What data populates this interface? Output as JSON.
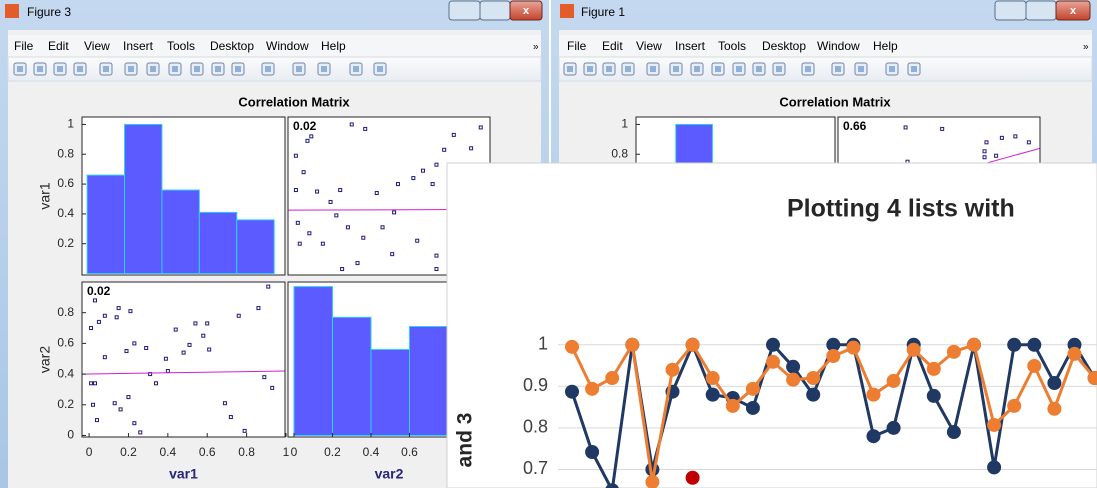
{
  "windows": [
    {
      "title": "Figure 3",
      "menu": [
        "File",
        "Edit",
        "View",
        "Insert",
        "Tools",
        "Desktop",
        "Window",
        "Help"
      ],
      "figure_title": "Correlation Matrix"
    },
    {
      "title": "Figure 1",
      "menu": [
        "File",
        "Edit",
        "View",
        "Insert",
        "Tools",
        "Desktop",
        "Window",
        "Help"
      ],
      "figure_title": "Correlation Matrix"
    }
  ],
  "chart_data": [
    {
      "type": "histogram",
      "bins": [
        -0.01,
        0.18,
        0.37,
        0.56,
        0.75,
        0.94
      ],
      "values": [
        0.66,
        1,
        0.56,
        0.41,
        0.36
      ],
      "color": "#5b5bff",
      "xlim": [
        -0.036,
        0.995
      ],
      "ylim": [
        -0.01,
        1.05
      ],
      "yticks": [
        0.2,
        0.4,
        0.6,
        0.8,
        1
      ],
      "ylabel": "var1"
    },
    {
      "type": "scatter",
      "annotation": "0.02",
      "color": "#1c1c7a",
      "fit_line": [
        0.425,
        0.43
      ],
      "x": [
        0.3,
        0.37,
        0.09,
        0.07,
        0.01,
        0.05,
        0.24,
        0.12,
        0.19,
        0.01,
        0.02,
        0.08,
        0.15,
        0.03,
        0.22,
        0.28,
        0.36,
        0.33,
        0.25,
        0.46,
        0.52,
        0.43,
        0.54,
        0.62,
        0.67,
        0.72,
        0.74,
        0.74,
        0.74,
        0.64,
        0.51,
        0.78,
        0.83,
        0.97,
        0.92
      ],
      "y": [
        1.0,
        0.97,
        0.92,
        0.89,
        0.79,
        0.68,
        0.56,
        0.55,
        0.48,
        0.56,
        0.34,
        0.27,
        0.2,
        0.2,
        0.39,
        0.31,
        0.24,
        0.07,
        0.03,
        0.31,
        0.41,
        0.54,
        0.6,
        0.64,
        0.69,
        0.6,
        0.73,
        0.03,
        0.12,
        0.22,
        0.13,
        0.83,
        0.93,
        0.98,
        0.84
      ],
      "xlim": [
        -0.031,
        1.018
      ],
      "ylim": [
        -0.01,
        1.05
      ]
    },
    {
      "type": "scatter",
      "annotation": "0.02",
      "color": "#1c1c7a",
      "fit_line": [
        0.4,
        0.42
      ],
      "x": [
        0.03,
        0.05,
        0.01,
        0.08,
        0.14,
        0.21,
        0.08,
        0.01,
        0.03,
        0.02,
        0.04,
        0.13,
        0.16,
        0.2,
        0.23,
        0.26,
        0.19,
        0.23,
        0.29,
        0.31,
        0.34,
        0.39,
        0.4,
        0.44,
        0.48,
        0.51,
        0.54,
        0.58,
        0.6,
        0.61,
        0.69,
        0.72,
        0.76,
        0.86,
        0.91,
        0.89,
        0.93,
        0.79,
        0.15
      ],
      "y": [
        0.88,
        0.74,
        0.7,
        0.78,
        0.77,
        0.81,
        0.51,
        0.34,
        0.34,
        0.2,
        0.1,
        0.21,
        0.17,
        0.25,
        0.08,
        0.02,
        0.55,
        0.6,
        0.57,
        0.4,
        0.34,
        0.5,
        0.42,
        0.69,
        0.54,
        0.59,
        0.73,
        0.65,
        0.73,
        0.56,
        0.21,
        0.12,
        0.78,
        0.83,
        0.97,
        0.38,
        0.31,
        0.03,
        0.83
      ],
      "xlim": [
        -0.036,
        0.995
      ],
      "ylim": [
        -0.01,
        1.0
      ],
      "xticks": [
        0,
        0.2,
        0.4,
        0.6,
        0.8,
        1
      ],
      "yticks": [
        0,
        0.2,
        0.4,
        0.6,
        0.8
      ],
      "xlabel": "var1",
      "ylabel": "var2"
    },
    {
      "type": "histogram",
      "bins": [
        0,
        0.2,
        0.4,
        0.6,
        0.8
      ],
      "values": [
        0.97,
        0.77,
        0.56,
        0.71
      ],
      "color": "#5b5bff",
      "xlim": [
        -0.031,
        1.018
      ],
      "ylim": [
        -0.01,
        1.0
      ],
      "xticks": [
        0,
        0.2,
        0.4,
        0.6
      ],
      "xlabel": "var2"
    },
    {
      "type": "histogram",
      "bins": [
        0.17,
        0.36
      ],
      "values": [
        1
      ],
      "color": "#5b5bff",
      "xlim": [
        -0.036,
        0.995
      ],
      "ylim": [
        -0.01,
        1.05
      ],
      "yticks": [
        0.8,
        1
      ]
    },
    {
      "type": "scatter",
      "annotation": "0.66",
      "color": "#1c1c7a",
      "fit_line": [
        0.465,
        0.84
      ],
      "x": [
        0.32,
        0.51,
        0.74,
        0.82,
        0.89,
        0.96,
        0.73,
        0.73,
        0.79,
        0.33
      ],
      "y": [
        0.98,
        0.97,
        0.88,
        0.91,
        0.92,
        0.88,
        0.82,
        0.78,
        0.79,
        0.75
      ],
      "xlim": [
        -0.031,
        1.018
      ],
      "ylim": [
        -0.01,
        1.05
      ]
    },
    {
      "type": "line",
      "title": "Plotting 4 lists with",
      "ylabel": "and 3",
      "categories": [
        null,
        null,
        null,
        null,
        null,
        null,
        null,
        null,
        null,
        null,
        null,
        null,
        null,
        null,
        null,
        null,
        null,
        null,
        null,
        null,
        null,
        null,
        null,
        null,
        null,
        null,
        null
      ],
      "series": [
        {
          "color": "#1f3864",
          "values": [
            0.887,
            0.742,
            0.65,
            1,
            0.7,
            0.887,
            1,
            0.88,
            0.872,
            0.848,
            1,
            0.947,
            0.88,
            1,
            1,
            0.78,
            0.8,
            1,
            0.877,
            0.79,
            1,
            0.705,
            1,
            1,
            0.908,
            1,
            0.92
          ]
        },
        {
          "color": "#ed7d31",
          "values": [
            0.995,
            0.894,
            0.92,
            1,
            0.67,
            0.94,
            1,
            0.92,
            0.853,
            0.894,
            0.959,
            0.916,
            0.92,
            0.973,
            0.993,
            0.88,
            0.913,
            0.988,
            0.942,
            0.983,
            1,
            0.807,
            0.853,
            0.949,
            0.846,
            0.978,
            0.92
          ]
        },
        {
          "color": "#c00000",
          "values": [
            null,
            null,
            null,
            null,
            null,
            null,
            0.68,
            null,
            null,
            null,
            null,
            null,
            null,
            null,
            null,
            null,
            null,
            null,
            null,
            null,
            null,
            null,
            null,
            null,
            null,
            null,
            null
          ]
        }
      ],
      "ylim": [
        0.6,
        1.05
      ],
      "yticks": [
        0.7,
        0.8,
        0.9,
        1
      ],
      "grid": true
    }
  ]
}
